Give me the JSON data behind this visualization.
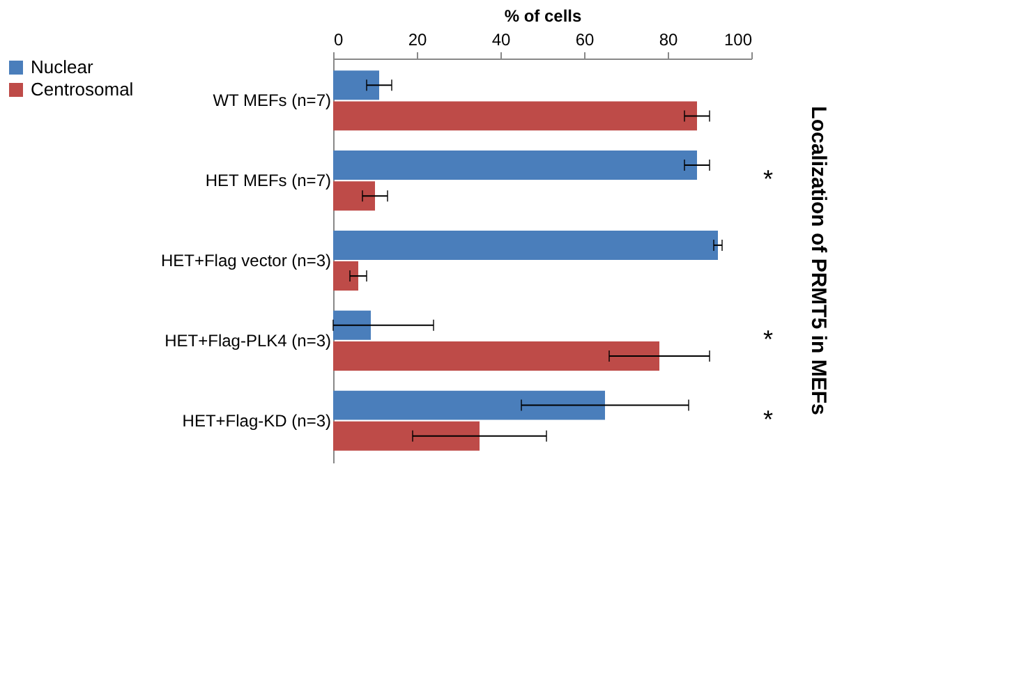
{
  "chart_data": {
    "type": "bar",
    "orientation": "horizontal",
    "title": "Localization of PRMT5 in MEFs",
    "xlabel": "% of cells",
    "categories": [
      "WT MEFs (n=7)",
      "HET MEFs (n=7)",
      "HET+Flag vector (n=3)",
      "HET+Flag-PLK4 (n=3)",
      "HET+Flag-KD (n=3)"
    ],
    "series": [
      {
        "name": "Nuclear",
        "color": "#4a7ebb",
        "values": [
          11,
          87,
          92,
          9,
          65
        ],
        "errors": [
          3,
          3,
          1,
          [
            0,
            24
          ],
          20
        ]
      },
      {
        "name": "Centrosomal",
        "color": "#be4b48",
        "values": [
          87,
          10,
          6,
          78,
          35
        ],
        "errors": [
          3,
          3,
          2,
          12,
          16
        ]
      }
    ],
    "xlim": [
      0,
      100
    ],
    "xticks": [
      0,
      20,
      40,
      60,
      80,
      100
    ],
    "grid": false,
    "legend": "left",
    "annotations": [
      "*",
      "*",
      "*"
    ]
  }
}
